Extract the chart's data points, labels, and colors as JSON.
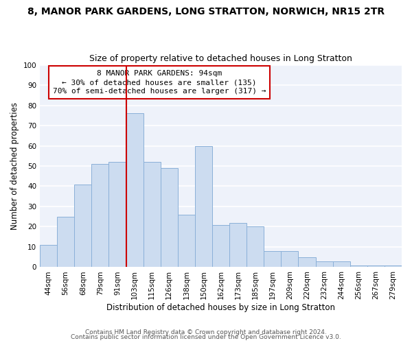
{
  "title": "8, MANOR PARK GARDENS, LONG STRATTON, NORWICH, NR15 2TR",
  "subtitle": "Size of property relative to detached houses in Long Stratton",
  "xlabel": "Distribution of detached houses by size in Long Stratton",
  "ylabel": "Number of detached properties",
  "footnote1": "Contains HM Land Registry data © Crown copyright and database right 2024.",
  "footnote2": "Contains public sector information licensed under the Open Government Licence v3.0.",
  "annotation_line1": "8 MANOR PARK GARDENS: 94sqm",
  "annotation_line2": "← 30% of detached houses are smaller (135)",
  "annotation_line3": "70% of semi-detached houses are larger (317) →",
  "bar_labels": [
    "44sqm",
    "56sqm",
    "68sqm",
    "79sqm",
    "91sqm",
    "103sqm",
    "115sqm",
    "126sqm",
    "138sqm",
    "150sqm",
    "162sqm",
    "173sqm",
    "185sqm",
    "197sqm",
    "209sqm",
    "220sqm",
    "232sqm",
    "244sqm",
    "256sqm",
    "267sqm",
    "279sqm"
  ],
  "bar_values": [
    11,
    25,
    41,
    51,
    52,
    76,
    52,
    49,
    26,
    60,
    21,
    22,
    20,
    8,
    8,
    5,
    3,
    3,
    1,
    1,
    1
  ],
  "bar_color": "#ccdcf0",
  "bar_edge_color": "#8ab0d8",
  "vline_x_index": 5,
  "vline_color": "#cc0000",
  "ylim": [
    0,
    100
  ],
  "yticks": [
    0,
    10,
    20,
    30,
    40,
    50,
    60,
    70,
    80,
    90,
    100
  ],
  "background_color": "#eef2fa",
  "grid_color": "#ffffff",
  "title_fontsize": 10,
  "subtitle_fontsize": 9,
  "axis_label_fontsize": 8.5,
  "tick_fontsize": 7.5,
  "annotation_fontsize": 8,
  "footnote_fontsize": 6.5
}
